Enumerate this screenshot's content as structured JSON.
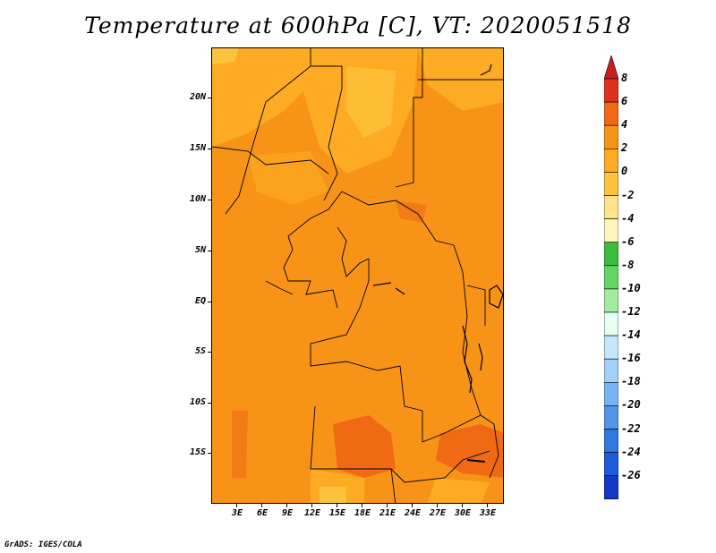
{
  "title": "Temperature at 600hPa [C], VT: 2020051518",
  "credit": "GrADS: IGES/COLA",
  "lat_labels": [
    "20N",
    "15N",
    "10N",
    "5N",
    "EQ",
    "5S",
    "10S",
    "15S"
  ],
  "lon_labels": [
    "3E",
    "6E",
    "9E",
    "12E",
    "15E",
    "18E",
    "21E",
    "24E",
    "27E",
    "30E",
    "33E"
  ],
  "colorbar": {
    "labels": [
      "8",
      "6",
      "4",
      "2",
      "0",
      "-2",
      "-4",
      "-6",
      "-8",
      "-10",
      "-12",
      "-14",
      "-16",
      "-18",
      "-20",
      "-22",
      "-24",
      "-26"
    ],
    "colors": [
      "#e0301e",
      "#f06a16",
      "#f79418",
      "#fcab22",
      "#fcc33c",
      "#fde38a",
      "#fff4bc",
      "#3cbc3c",
      "#64d464",
      "#a0eca0",
      "#e6fff0",
      "#c6e6fa",
      "#a2d0f8",
      "#78b4f2",
      "#5296e8",
      "#3078e0",
      "#1e5adc",
      "#1238c4",
      "#101a88"
    ],
    "over_color": "#c81e1e",
    "under_color": "#e6e6ff"
  },
  "colors": {
    "dominant": "#f79418",
    "warm_patch": "#f06a16",
    "cool_patch": "#fcab22",
    "boundary": "#000000"
  }
}
